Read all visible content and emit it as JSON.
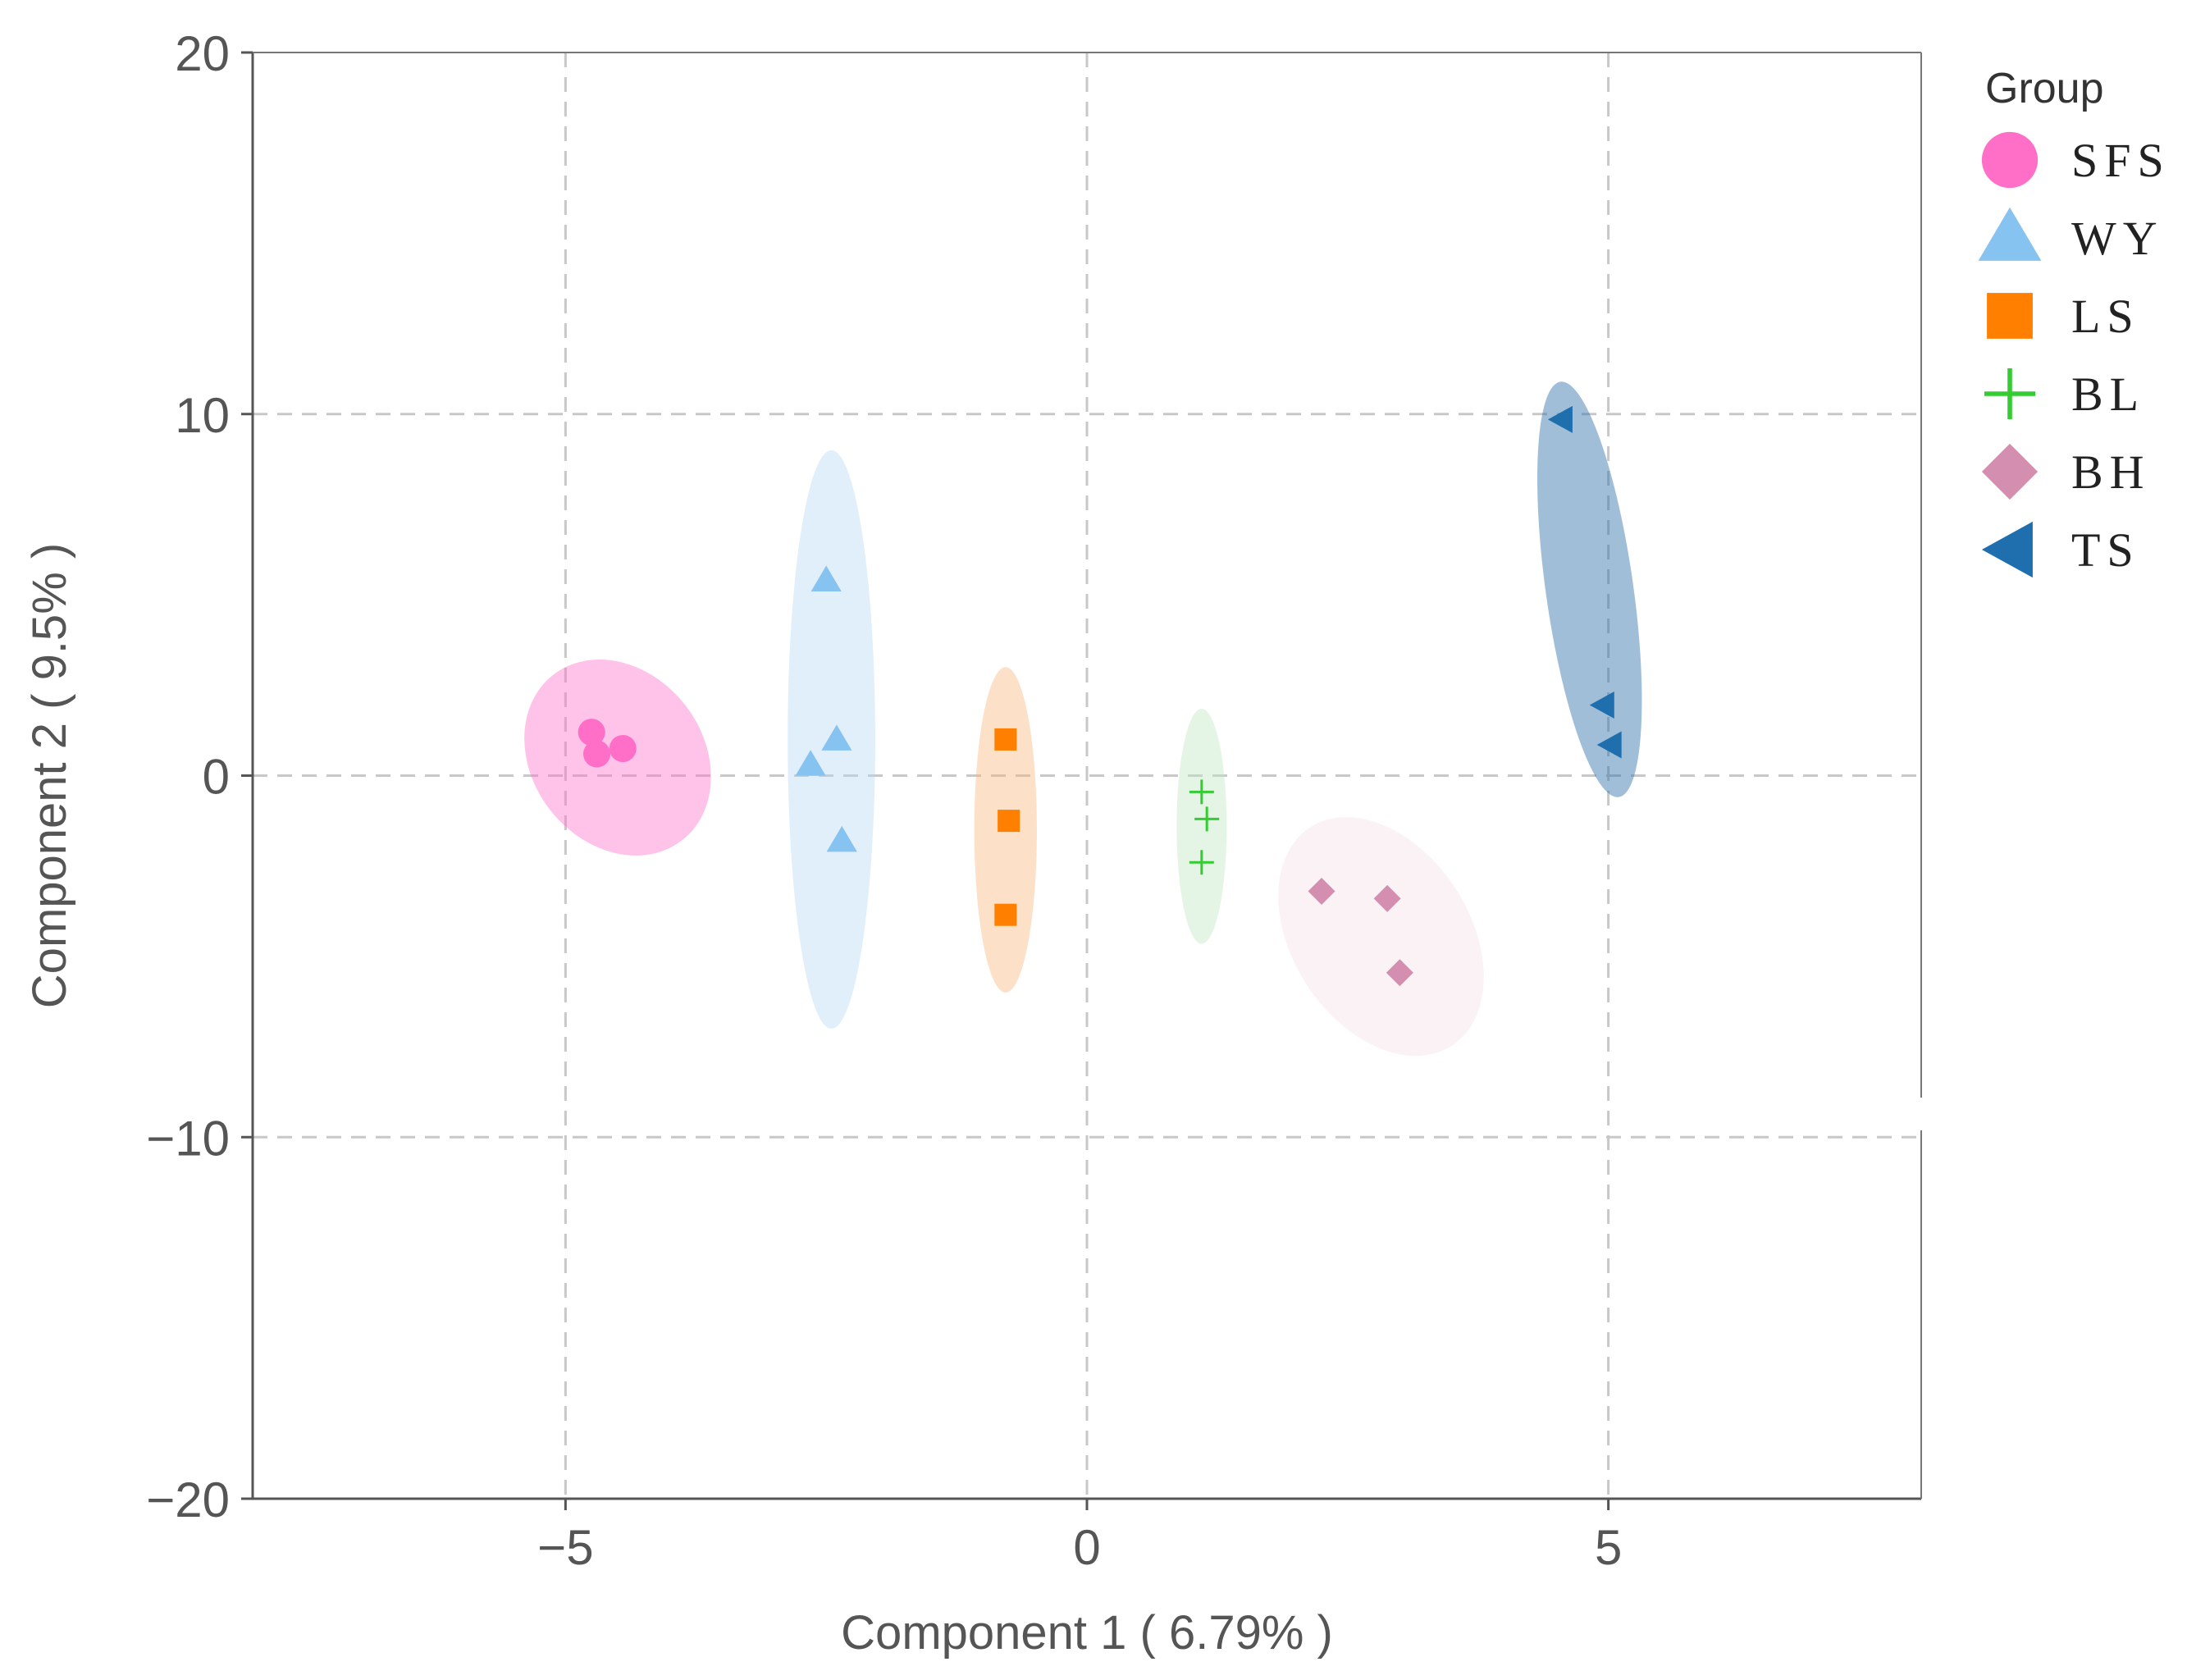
{
  "chart_data": {
    "type": "scatter",
    "xlabel": "Component 1 ( 6.79% )",
    "ylabel": "Component 2 ( 9.5% )",
    "xlim": [
      -8,
      8
    ],
    "ylim": [
      -20,
      20
    ],
    "x_ticks": [
      -5,
      0,
      5
    ],
    "y_ticks": [
      -20,
      -10,
      0,
      10,
      20
    ],
    "x_tick_labels": [
      "−5",
      "0",
      "5"
    ],
    "y_tick_labels": [
      "−20",
      "−10",
      "0",
      "10",
      "20"
    ],
    "grid": true,
    "legend": {
      "title": "Group",
      "position": "right"
    },
    "series": [
      {
        "name": "SFS",
        "marker": "circle",
        "color": "#ff6ec7",
        "ellipse_color": "#ff6ec7",
        "points": [
          [
            -4.75,
            1.2
          ],
          [
            -4.7,
            0.6
          ],
          [
            -4.45,
            0.75
          ]
        ],
        "ellipse": {
          "cx": -4.5,
          "cy": 0.5,
          "rx": 0.82,
          "ry": 2.9,
          "angle": -38
        }
      },
      {
        "name": "WY",
        "marker": "triangle-up",
        "color": "#87c3f0",
        "ellipse_color": "#b8d8f5",
        "points": [
          [
            -2.5,
            5.4
          ],
          [
            -2.4,
            1.0
          ],
          [
            -2.65,
            0.3
          ],
          [
            -2.35,
            -1.8
          ]
        ],
        "ellipse": {
          "cx": -2.45,
          "cy": 1.0,
          "rx": 0.42,
          "ry": 8.0,
          "angle": 0
        }
      },
      {
        "name": "LS",
        "marker": "square",
        "color": "#ff7f00",
        "ellipse_color": "#f9b47a",
        "points": [
          [
            -0.78,
            1.0
          ],
          [
            -0.75,
            -1.25
          ],
          [
            -0.78,
            -3.85
          ]
        ],
        "ellipse": {
          "cx": -0.78,
          "cy": -1.5,
          "rx": 0.3,
          "ry": 4.5,
          "angle": 0
        }
      },
      {
        "name": "BL",
        "marker": "plus",
        "color": "#33cc33",
        "ellipse_color": "#c2e8c2",
        "points": [
          [
            1.1,
            -0.45
          ],
          [
            1.15,
            -1.2
          ],
          [
            1.1,
            -2.4
          ]
        ],
        "ellipse": {
          "cx": 1.1,
          "cy": -1.4,
          "rx": 0.24,
          "ry": 3.25,
          "angle": 0
        }
      },
      {
        "name": "BH",
        "marker": "diamond",
        "color": "#d48fb0",
        "ellipse_color": "#f5e0ea",
        "points": [
          [
            2.25,
            -3.2
          ],
          [
            2.88,
            -3.4
          ],
          [
            3.0,
            -5.45
          ]
        ],
        "ellipse": {
          "cx": 2.82,
          "cy": -4.45,
          "rx": 0.85,
          "ry": 3.6,
          "angle": -33
        }
      },
      {
        "name": "TS",
        "marker": "triangle-left",
        "color": "#1f6faf",
        "ellipse_color": "#2d6ea6",
        "points": [
          [
            4.55,
            9.85
          ],
          [
            4.95,
            1.95
          ],
          [
            5.02,
            0.85
          ]
        ],
        "ellipse": {
          "cx": 4.82,
          "cy": 5.15,
          "rx": 0.42,
          "ry": 5.8,
          "angle": -8
        }
      }
    ]
  }
}
